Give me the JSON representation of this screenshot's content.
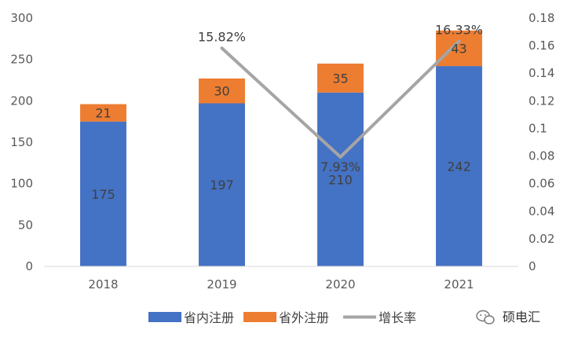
{
  "chart_data": {
    "type": "bar",
    "stacked": true,
    "categories": [
      "2018",
      "2019",
      "2020",
      "2021"
    ],
    "series": [
      {
        "name": "省内注册",
        "type": "bar",
        "axis": "left",
        "color": "#4472C4",
        "values": [
          175,
          197,
          210,
          242
        ],
        "labels": [
          "175",
          "197",
          "210",
          "242"
        ]
      },
      {
        "name": "省外注册",
        "type": "bar",
        "axis": "left",
        "color": "#ED7D31",
        "values": [
          21,
          30,
          35,
          43
        ],
        "labels": [
          "21",
          "30",
          "35",
          "43"
        ]
      },
      {
        "name": "增长率",
        "type": "line",
        "axis": "right",
        "color": "#A5A5A5",
        "values": [
          null,
          0.1582,
          0.0793,
          0.1633
        ],
        "labels": [
          "",
          "15.82%",
          "7.93%",
          "16.33%"
        ]
      }
    ],
    "y_left": {
      "lim": [
        0,
        300
      ],
      "ticks": [
        "0",
        "50",
        "100",
        "150",
        "200",
        "250",
        "300"
      ]
    },
    "y_right": {
      "lim": [
        0,
        0.18
      ],
      "ticks": [
        "0",
        "0.02",
        "0.04",
        "0.06",
        "0.08",
        "0.1",
        "0.12",
        "0.14",
        "0.16",
        "0.18"
      ]
    },
    "grid": false,
    "legend_position": "bottom"
  },
  "watermark": {
    "text": "硕电汇",
    "icon": "wechat-icon"
  }
}
